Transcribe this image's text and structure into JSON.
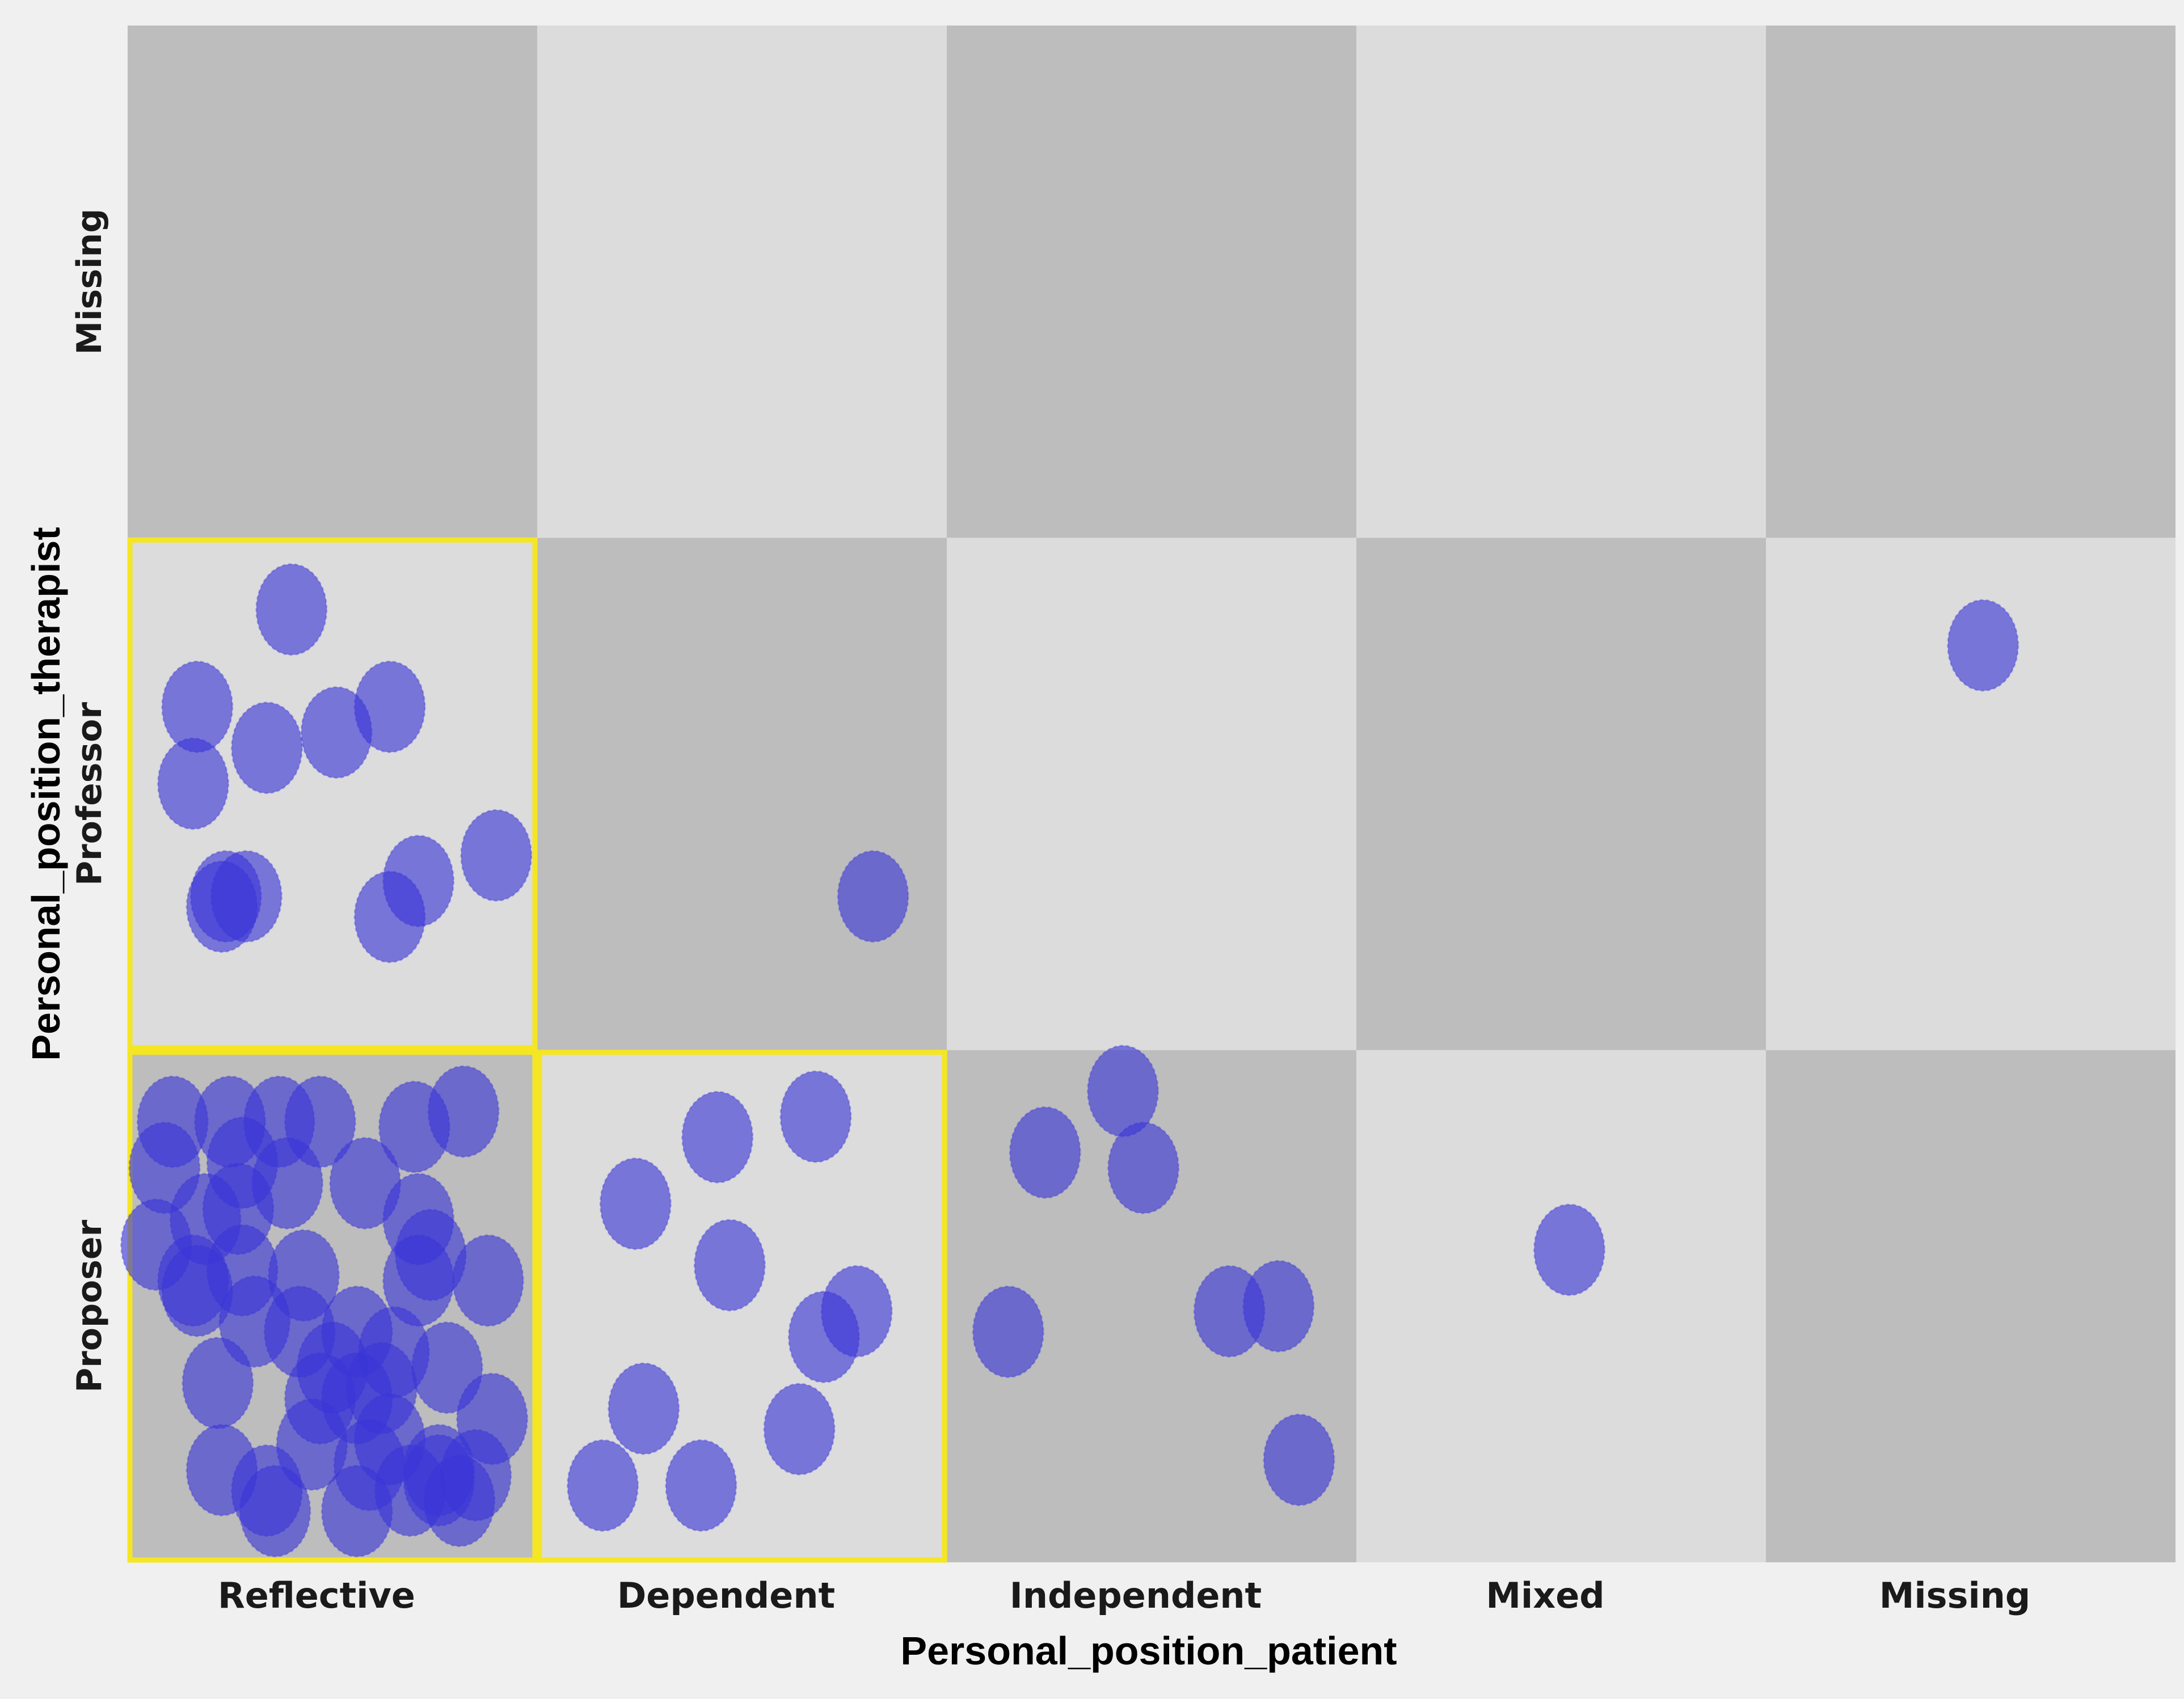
{
  "chart_data": {
    "type": "scatter",
    "title": "",
    "xlabel": "Personal_position_patient",
    "ylabel": "Personal_position_therapist",
    "x_categories": [
      "Reflective",
      "Dependent",
      "Independent",
      "Mixed",
      "Missing"
    ],
    "y_categories": [
      "Proposer",
      "Professor",
      "Missing"
    ],
    "grid": true,
    "legend": "none",
    "cell_colors": {
      "dark": "#bdbdbd",
      "light": "#dcdcdc"
    },
    "highlight_color": "#f5e624",
    "highlighted_cells": [
      {
        "x": "Reflective",
        "y": "Professor"
      },
      {
        "x": "Reflective",
        "y": "Proposer"
      },
      {
        "x": "Dependent",
        "y": "Proposer"
      }
    ],
    "point_color": "#3a36d6",
    "cell_counts": [
      {
        "x": "Reflective",
        "y": "Professor",
        "count": 12
      },
      {
        "x": "Dependent",
        "y": "Professor",
        "count": 1
      },
      {
        "x": "Missing",
        "y": "Professor",
        "count": 1
      },
      {
        "x": "Reflective",
        "y": "Proposer",
        "count": 44
      },
      {
        "x": "Dependent",
        "y": "Proposer",
        "count": 10
      },
      {
        "x": "Independent",
        "y": "Proposer",
        "count": 7
      },
      {
        "x": "Mixed",
        "y": "Proposer",
        "count": 1
      }
    ],
    "points": [
      {
        "x": 0.4,
        "y": 1.86
      },
      {
        "x": 0.17,
        "y": 1.67
      },
      {
        "x": 0.34,
        "y": 1.59
      },
      {
        "x": 0.51,
        "y": 1.62
      },
      {
        "x": 0.64,
        "y": 1.67
      },
      {
        "x": 0.16,
        "y": 1.52
      },
      {
        "x": 0.29,
        "y": 1.3
      },
      {
        "x": 0.23,
        "y": 1.28
      },
      {
        "x": 0.71,
        "y": 1.33
      },
      {
        "x": 0.64,
        "y": 1.26
      },
      {
        "x": 0.9,
        "y": 1.38
      },
      {
        "x": 0.24,
        "y": 1.3
      },
      {
        "x": 1.82,
        "y": 1.3
      },
      {
        "x": 4.53,
        "y": 1.79
      },
      {
        "x": 0.11,
        "y": 0.86
      },
      {
        "x": 0.25,
        "y": 0.86
      },
      {
        "x": 0.37,
        "y": 0.86
      },
      {
        "x": 0.47,
        "y": 0.86
      },
      {
        "x": 0.7,
        "y": 0.85
      },
      {
        "x": 0.82,
        "y": 0.88
      },
      {
        "x": 0.09,
        "y": 0.77
      },
      {
        "x": 0.28,
        "y": 0.78
      },
      {
        "x": 0.39,
        "y": 0.74
      },
      {
        "x": 0.58,
        "y": 0.74
      },
      {
        "x": 0.07,
        "y": 0.62
      },
      {
        "x": 0.19,
        "y": 0.67
      },
      {
        "x": 0.27,
        "y": 0.69
      },
      {
        "x": 0.71,
        "y": 0.67
      },
      {
        "x": 0.74,
        "y": 0.6
      },
      {
        "x": 0.16,
        "y": 0.55
      },
      {
        "x": 0.28,
        "y": 0.57
      },
      {
        "x": 0.43,
        "y": 0.56
      },
      {
        "x": 0.71,
        "y": 0.55
      },
      {
        "x": 0.88,
        "y": 0.55
      },
      {
        "x": 0.42,
        "y": 0.45
      },
      {
        "x": 0.56,
        "y": 0.45
      },
      {
        "x": 0.65,
        "y": 0.41
      },
      {
        "x": 0.5,
        "y": 0.38
      },
      {
        "x": 0.78,
        "y": 0.38
      },
      {
        "x": 0.22,
        "y": 0.35
      },
      {
        "x": 0.47,
        "y": 0.32
      },
      {
        "x": 0.56,
        "y": 0.32
      },
      {
        "x": 0.62,
        "y": 0.34
      },
      {
        "x": 0.45,
        "y": 0.23
      },
      {
        "x": 0.64,
        "y": 0.24
      },
      {
        "x": 0.89,
        "y": 0.28
      },
      {
        "x": 0.23,
        "y": 0.18
      },
      {
        "x": 0.34,
        "y": 0.14
      },
      {
        "x": 0.59,
        "y": 0.19
      },
      {
        "x": 0.76,
        "y": 0.18
      },
      {
        "x": 0.36,
        "y": 0.1
      },
      {
        "x": 0.56,
        "y": 0.1
      },
      {
        "x": 0.69,
        "y": 0.14
      },
      {
        "x": 0.81,
        "y": 0.12
      },
      {
        "x": 0.17,
        "y": 0.53
      },
      {
        "x": 0.31,
        "y": 0.47
      },
      {
        "x": 0.76,
        "y": 0.16
      },
      {
        "x": 0.85,
        "y": 0.17
      },
      {
        "x": 1.68,
        "y": 0.87
      },
      {
        "x": 1.44,
        "y": 0.83
      },
      {
        "x": 1.24,
        "y": 0.7
      },
      {
        "x": 1.47,
        "y": 0.58
      },
      {
        "x": 1.78,
        "y": 0.49
      },
      {
        "x": 1.7,
        "y": 0.44
      },
      {
        "x": 1.26,
        "y": 0.3
      },
      {
        "x": 1.16,
        "y": 0.15
      },
      {
        "x": 1.4,
        "y": 0.15
      },
      {
        "x": 1.64,
        "y": 0.26
      },
      {
        "x": 2.43,
        "y": 0.92
      },
      {
        "x": 2.24,
        "y": 0.8
      },
      {
        "x": 2.48,
        "y": 0.77
      },
      {
        "x": 2.15,
        "y": 0.45
      },
      {
        "x": 2.69,
        "y": 0.49
      },
      {
        "x": 2.81,
        "y": 0.5
      },
      {
        "x": 2.86,
        "y": 0.2
      },
      {
        "x": 3.52,
        "y": 0.61
      }
    ]
  }
}
